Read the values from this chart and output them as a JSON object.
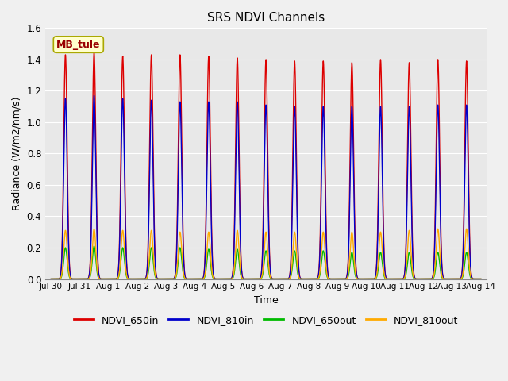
{
  "title": "SRS NDVI Channels",
  "ylabel": "Radiance (W/m2/nm/s)",
  "xlabel": "Time",
  "ylim": [
    0.0,
    1.6
  ],
  "xlim_days": [
    -0.2,
    15.2
  ],
  "fig_facecolor": "#f0f0f0",
  "ax_facecolor": "#e8e8e8",
  "site_label": "MB_tule",
  "legend": [
    {
      "label": "NDVI_650in",
      "color": "#dd0000"
    },
    {
      "label": "NDVI_810in",
      "color": "#0000cc"
    },
    {
      "label": "NDVI_650out",
      "color": "#00bb00"
    },
    {
      "label": "NDVI_810out",
      "color": "#ffaa00"
    }
  ],
  "x_tick_labels": [
    "Jul 30",
    "Jul 31",
    "Aug 1",
    "Aug 2",
    "Aug 3",
    "Aug 4",
    "Aug 5",
    "Aug 6",
    "Aug 7",
    "Aug 8",
    "Aug 9",
    "Aug 10",
    "Aug 11",
    "Aug 12",
    "Aug 13",
    "Aug 14"
  ],
  "x_tick_positions": [
    0,
    1,
    2,
    3,
    4,
    5,
    6,
    7,
    8,
    9,
    10,
    11,
    12,
    13,
    14,
    15
  ],
  "num_cycles": 15,
  "peak_650in": [
    1.43,
    1.45,
    1.42,
    1.43,
    1.43,
    1.42,
    1.41,
    1.4,
    1.39,
    1.39,
    1.38,
    1.4,
    1.38,
    1.4,
    1.39
  ],
  "peak_810in": [
    1.15,
    1.17,
    1.15,
    1.14,
    1.13,
    1.13,
    1.13,
    1.11,
    1.1,
    1.1,
    1.1,
    1.1,
    1.1,
    1.11,
    1.11
  ],
  "peak_650out": [
    0.2,
    0.21,
    0.2,
    0.2,
    0.2,
    0.19,
    0.19,
    0.18,
    0.18,
    0.18,
    0.17,
    0.17,
    0.17,
    0.17,
    0.17
  ],
  "peak_810out": [
    0.31,
    0.32,
    0.31,
    0.31,
    0.3,
    0.3,
    0.31,
    0.3,
    0.3,
    0.3,
    0.3,
    0.3,
    0.31,
    0.32,
    0.32
  ],
  "sigma": 0.06,
  "grid_color": "#ffffff",
  "line_width": 1.0
}
